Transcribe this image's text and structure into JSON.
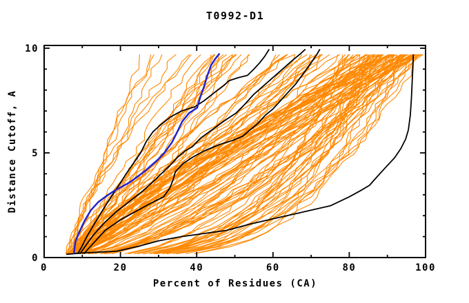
{
  "window_title": "T0992-D1",
  "colors": {
    "background": "#ffffff",
    "axis": "#000000",
    "orange_models": "#ff8800",
    "highlight_blue": "#2323cd",
    "highlight_black": "#000000"
  },
  "chart_data": {
    "type": "line",
    "title": "T0992-D1",
    "xlabel": "Percent of Residues (CA)",
    "ylabel": "Distance Cutoff, A",
    "xlim": [
      0,
      100
    ],
    "ylim": [
      0,
      10
    ],
    "x_major_ticks": [
      0,
      20,
      40,
      60,
      80,
      100
    ],
    "x_minor_ticks": [
      10,
      30,
      50,
      70,
      90
    ],
    "y_major_ticks": [
      0,
      5,
      10
    ],
    "y_minor_ticks": [
      1,
      2,
      3,
      4,
      6,
      7,
      8,
      9
    ],
    "grid": false,
    "legend_position": "none",
    "description": "Cumulative distance-cutoff curves for predicted models of target T0992-D1; ~125 orange server-model curves fan out from (~6%, 0.2 A); one blue highlighted model and four black reference models drawn on top.",
    "series": [
      {
        "name": "highlighted-model-blue",
        "color": "#2323cd",
        "stroke_width": 2.5,
        "points": [
          [
            7.8,
            0.18
          ],
          [
            8.2,
            0.75
          ],
          [
            9.3,
            1.25
          ],
          [
            10.6,
            1.75
          ],
          [
            12.2,
            2.25
          ],
          [
            14.2,
            2.65
          ],
          [
            16.8,
            3.0
          ],
          [
            19.0,
            3.25
          ],
          [
            22.5,
            3.6
          ],
          [
            26.2,
            4.1
          ],
          [
            29.8,
            4.67
          ],
          [
            31.5,
            5.0
          ],
          [
            33.5,
            5.5
          ],
          [
            34.9,
            6.0
          ],
          [
            36.2,
            6.5
          ],
          [
            38.0,
            6.9
          ],
          [
            40.1,
            7.15
          ],
          [
            41.0,
            7.7
          ],
          [
            41.8,
            8.1
          ],
          [
            42.8,
            8.7
          ],
          [
            43.8,
            9.2
          ],
          [
            44.9,
            9.5
          ],
          [
            46.0,
            9.75
          ]
        ]
      },
      {
        "name": "reference-model-black-1",
        "color": "#000000",
        "stroke_width": 1.8,
        "points": [
          [
            8.8,
            0.18
          ],
          [
            9.8,
            0.5
          ],
          [
            11.2,
            1.0
          ],
          [
            12.8,
            1.5
          ],
          [
            14.8,
            2.1
          ],
          [
            17.2,
            2.8
          ],
          [
            19.4,
            3.4
          ],
          [
            21.5,
            4.0
          ],
          [
            23.4,
            4.5
          ],
          [
            25.3,
            5.0
          ],
          [
            26.8,
            5.55
          ],
          [
            28.5,
            6.0
          ],
          [
            30.6,
            6.35
          ],
          [
            33.0,
            6.7
          ],
          [
            36.0,
            7.0
          ],
          [
            39.5,
            7.2
          ],
          [
            42.0,
            7.5
          ],
          [
            44.8,
            7.9
          ],
          [
            47.0,
            8.2
          ],
          [
            48.5,
            8.45
          ],
          [
            51.0,
            8.6
          ],
          [
            53.3,
            8.7
          ],
          [
            55.0,
            9.0
          ],
          [
            56.5,
            9.3
          ],
          [
            57.8,
            9.6
          ],
          [
            59.0,
            9.95
          ]
        ]
      },
      {
        "name": "reference-model-black-2",
        "color": "#000000",
        "stroke_width": 1.8,
        "points": [
          [
            9.4,
            0.18
          ],
          [
            11.0,
            0.6
          ],
          [
            13.0,
            1.1
          ],
          [
            16.0,
            1.7
          ],
          [
            19.0,
            2.2
          ],
          [
            22.5,
            2.7
          ],
          [
            26.0,
            3.2
          ],
          [
            29.0,
            3.7
          ],
          [
            30.7,
            4.0
          ],
          [
            33.0,
            4.4
          ],
          [
            35.0,
            4.8
          ],
          [
            37.0,
            5.1
          ],
          [
            38.9,
            5.3
          ],
          [
            41.0,
            5.7
          ],
          [
            44.0,
            6.1
          ],
          [
            47.0,
            6.5
          ],
          [
            50.3,
            6.9
          ],
          [
            52.5,
            7.3
          ],
          [
            55.0,
            7.8
          ],
          [
            57.5,
            8.2
          ],
          [
            60.0,
            8.6
          ],
          [
            62.5,
            9.0
          ],
          [
            65.0,
            9.4
          ],
          [
            67.0,
            9.7
          ],
          [
            68.5,
            9.95
          ]
        ]
      },
      {
        "name": "reference-model-black-3",
        "color": "#000000",
        "stroke_width": 1.8,
        "points": [
          [
            10.4,
            0.18
          ],
          [
            13.0,
            0.7
          ],
          [
            16.0,
            1.3
          ],
          [
            20.0,
            1.8
          ],
          [
            24.0,
            2.2
          ],
          [
            28.0,
            2.6
          ],
          [
            31.3,
            2.9
          ],
          [
            32.9,
            3.3
          ],
          [
            33.8,
            3.7
          ],
          [
            34.4,
            4.1
          ],
          [
            36.5,
            4.5
          ],
          [
            39.0,
            4.8
          ],
          [
            42.0,
            5.1
          ],
          [
            46.0,
            5.4
          ],
          [
            49.5,
            5.6
          ],
          [
            52.1,
            5.8
          ],
          [
            54.0,
            6.1
          ],
          [
            56.0,
            6.4
          ],
          [
            58.0,
            6.8
          ],
          [
            60.0,
            7.1
          ],
          [
            62.0,
            7.5
          ],
          [
            64.0,
            7.9
          ],
          [
            66.0,
            8.3
          ],
          [
            68.0,
            8.8
          ],
          [
            70.0,
            9.3
          ],
          [
            71.5,
            9.7
          ],
          [
            72.3,
            9.95
          ]
        ]
      },
      {
        "name": "reference-model-black-4",
        "color": "#000000",
        "stroke_width": 1.8,
        "points": [
          [
            5.8,
            0.15
          ],
          [
            10.0,
            0.22
          ],
          [
            19.0,
            0.3
          ],
          [
            25.0,
            0.55
          ],
          [
            30.0,
            0.8
          ],
          [
            36.0,
            1.0
          ],
          [
            42.0,
            1.15
          ],
          [
            47.9,
            1.3
          ],
          [
            54.0,
            1.6
          ],
          [
            60.0,
            1.85
          ],
          [
            66.0,
            2.1
          ],
          [
            72.0,
            2.35
          ],
          [
            75.0,
            2.47
          ],
          [
            80.0,
            2.9
          ],
          [
            83.0,
            3.2
          ],
          [
            85.3,
            3.45
          ],
          [
            87.5,
            3.9
          ],
          [
            89.5,
            4.3
          ],
          [
            91.9,
            4.77
          ],
          [
            93.5,
            5.2
          ],
          [
            94.8,
            5.66
          ],
          [
            95.5,
            6.1
          ],
          [
            96.0,
            6.8
          ],
          [
            96.3,
            7.6
          ],
          [
            96.5,
            8.4
          ],
          [
            96.7,
            9.2
          ],
          [
            96.8,
            9.7
          ]
        ]
      }
    ],
    "background_series": {
      "name": "server-models-orange",
      "color": "#ff8800",
      "stroke_width": 1.1,
      "count": 125,
      "seed": 7,
      "start_x_range": [
        5.5,
        8.7
      ],
      "top_x_range": [
        21,
        99.6
      ],
      "y_start": 0.18,
      "y_end": 9.7,
      "right_cluster_fraction": 0.38,
      "flat_bottom_fraction": 0.28
    }
  }
}
